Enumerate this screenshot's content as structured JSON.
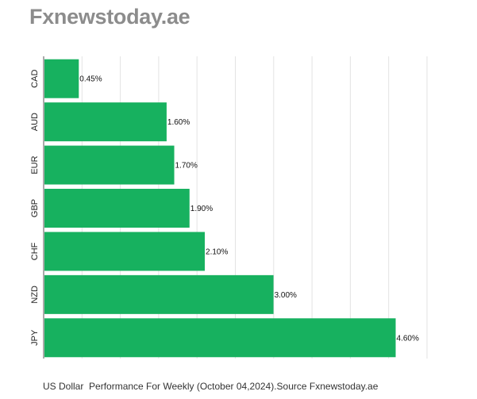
{
  "brand": "Fxnewstoday.ae",
  "caption": "US Dollar  Performance For Weekly (October 04,2024).Source Fxnewstoday.ae",
  "chart_data": {
    "type": "bar",
    "orientation": "horizontal",
    "categories": [
      "CAD",
      "AUD",
      "EUR",
      "GBP",
      "CHF",
      "NZD",
      "JPY"
    ],
    "values": [
      0.45,
      1.6,
      1.7,
      1.9,
      2.1,
      3.0,
      4.6
    ],
    "data_labels": [
      "0.45%",
      "1.60%",
      "1.70%",
      "1.90%",
      "2.10%",
      "3.00%",
      "4.60%"
    ],
    "xlim": [
      0,
      5
    ],
    "grid": true,
    "bar_color": "#17b15f",
    "grid_color": "#e3e3e3",
    "axis_color": "#555555"
  }
}
